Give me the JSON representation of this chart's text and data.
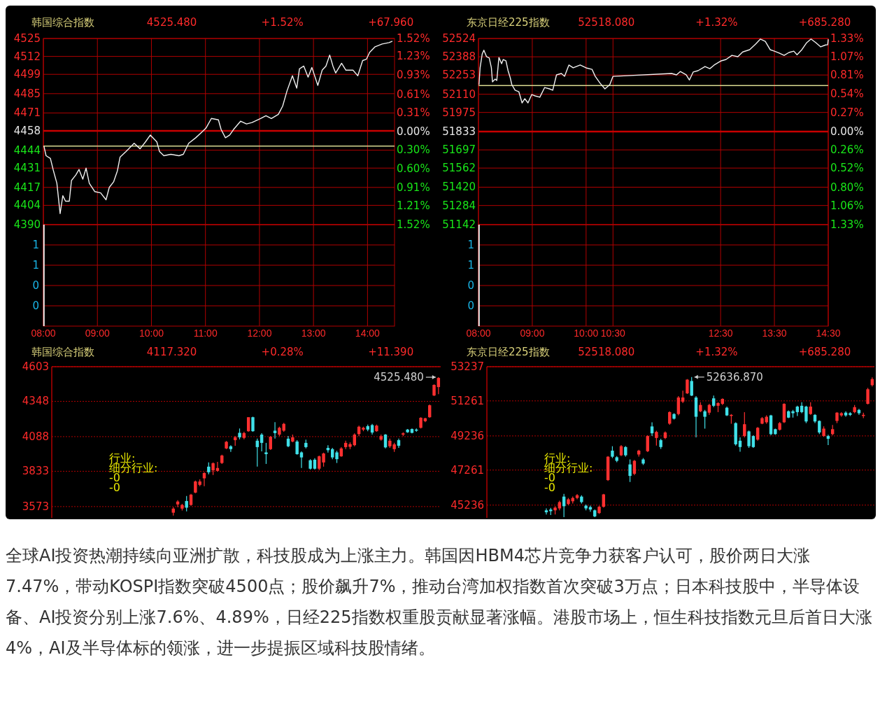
{
  "chart_data": [
    {
      "type": "line",
      "title": "韩国综合指数",
      "annotations": [
        "4525.480",
        "+1.52%",
        "+67.960"
      ],
      "x": [
        8.01,
        8.05,
        8.13,
        8.18,
        8.25,
        8.31,
        8.36,
        8.41,
        8.48,
        8.52,
        8.6,
        8.66,
        8.73,
        8.79,
        8.85,
        8.95,
        9.06,
        9.16,
        9.22,
        9.3,
        9.37,
        9.42,
        9.53,
        9.68,
        9.79,
        9.89,
        9.98,
        10.1,
        10.15,
        10.23,
        10.36,
        10.51,
        10.59,
        10.69,
        10.82,
        10.93,
        11.01,
        11.11,
        11.24,
        11.29,
        11.37,
        11.45,
        11.52,
        11.65,
        11.76,
        11.86,
        12.02,
        12.12,
        12.22,
        12.35,
        12.43,
        12.51,
        12.61,
        12.69,
        12.74,
        12.82,
        12.9,
        12.97,
        13.08,
        13.16,
        13.23,
        13.3,
        13.36,
        13.41,
        13.52,
        13.6,
        13.73,
        13.82,
        13.91,
        13.98,
        14.04,
        14.14,
        14.27,
        14.4,
        14.46
      ],
      "series": [
        {
          "color": "#f0f0f0",
          "values": [
            4447,
            4440,
            4438,
            4430,
            4420,
            4398,
            4411,
            4407,
            4407,
            4422,
            4426,
            4430,
            4423,
            4431,
            4420,
            4414,
            4413,
            4408,
            4417,
            4421,
            4429,
            4439,
            4443,
            4449,
            4445,
            4450,
            4455,
            4450,
            4443,
            4440,
            4441,
            4440,
            4441,
            4449,
            4453,
            4457,
            4460,
            4467,
            4466,
            4459,
            4453,
            4455,
            4459,
            4465,
            4463,
            4464,
            4467,
            4469,
            4467,
            4470,
            4476,
            4487,
            4498,
            4489,
            4503,
            4505,
            4497,
            4504,
            4491,
            4502,
            4505,
            4513,
            4505,
            4500,
            4507,
            4502,
            4502,
            4498,
            4509,
            4510,
            4515,
            4519,
            4521,
            4522,
            4523
          ]
        }
      ],
      "xlim": [
        8,
        14.5
      ],
      "xticks": [
        {
          "value": 8,
          "label": null
        },
        {
          "value": 9,
          "label": null
        },
        {
          "value": 10,
          "label": null
        },
        {
          "value": 11,
          "label": null
        },
        {
          "value": 12,
          "label": null
        },
        {
          "value": 13,
          "label": null
        },
        {
          "value": 14,
          "label": null
        }
      ],
      "ylim": [
        4390,
        4525
      ],
      "yticks": [
        4525,
        4512,
        4499,
        4485,
        4471,
        4458,
        4444,
        4431,
        4417,
        4404,
        4390
      ],
      "y2lim": [
        -1.52,
        1.52
      ],
      "y2ticks": [
        {
          "value": 1.52,
          "label": "1.52%"
        },
        {
          "value": 1.23,
          "label": "1.23%"
        },
        {
          "value": 0.93,
          "label": "0.93%"
        },
        {
          "value": 0.61,
          "label": "0.61%"
        },
        {
          "value": 0.31,
          "label": "0.31%"
        },
        {
          "value": 0,
          "label": "0.00%"
        },
        {
          "value": -0.3,
          "label": "0.30%"
        },
        {
          "value": -0.6,
          "label": "0.60%"
        },
        {
          "value": -0.91,
          "label": "0.91%"
        },
        {
          "value": -1.21,
          "label": "1.21%"
        },
        {
          "value": -1.52,
          "label": "1.52%"
        }
      ],
      "ref_lines": [
        {
          "axis": "y",
          "value": 4458,
          "color": "#c80000"
        },
        {
          "axis": "y",
          "value": 4447,
          "color": "#d8d890"
        }
      ],
      "grid": true,
      "tick_labels": "y"
    },
    {
      "type": "bar",
      "x": [
        8.01
      ],
      "values": [
        1.25
      ],
      "color": "#f0f0f0",
      "xlim": [
        8,
        14.5
      ],
      "xticks": [
        {
          "value": 8,
          "label": "08:00"
        },
        {
          "value": 9,
          "label": "09:00"
        },
        {
          "value": 10,
          "label": "10:00"
        },
        {
          "value": 11,
          "label": "11:00"
        },
        {
          "value": 12,
          "label": "12:00"
        },
        {
          "value": 13,
          "label": "13:00"
        },
        {
          "value": 14,
          "label": "14:00"
        }
      ],
      "ylim": [
        0,
        1.25
      ],
      "yticks": [
        {
          "value": 1,
          "label": "1"
        },
        {
          "value": 0.75,
          "label": "1"
        },
        {
          "value": 0.5,
          "label": "0"
        },
        {
          "value": 0.25,
          "label": "0"
        }
      ],
      "grid": true
    },
    {
      "type": "line",
      "title": "东京日经225指数",
      "annotations": [
        "52518.080",
        "+1.32%",
        "+685.280"
      ],
      "x": [
        8.01,
        8.03,
        8.07,
        8.1,
        8.15,
        8.2,
        8.24,
        8.26,
        8.31,
        8.34,
        8.38,
        8.43,
        8.46,
        8.51,
        8.55,
        8.59,
        8.62,
        8.68,
        8.75,
        8.81,
        8.86,
        8.92,
        8.99,
        9.05,
        9.14,
        9.23,
        9.32,
        9.38,
        9.45,
        9.54,
        9.6,
        9.68,
        9.76,
        9.89,
        10,
        10.11,
        10.17,
        10.26,
        10.35,
        10.44,
        10.5,
        11.59,
        11.68,
        11.75,
        11.86,
        11.92,
        11.99,
        12.08,
        12.21,
        12.3,
        12.38,
        12.51,
        12.6,
        12.71,
        12.82,
        12.91,
        13.04,
        13.15,
        13.24,
        13.33,
        13.42,
        13.5,
        13.59,
        13.68,
        13.77,
        13.86,
        13.92,
        14.01,
        14.1,
        14.18,
        14.27,
        14.36,
        14.45,
        14.49,
        14.5
      ],
      "series": [
        {
          "color": "#f0f0f0",
          "values": [
            52181,
            52306,
            52410,
            52437,
            52389,
            52379,
            52306,
            52202,
            52223,
            52212,
            52383,
            52337,
            52368,
            52358,
            52285,
            52233,
            52181,
            52140,
            52129,
            52046,
            52077,
            52046,
            52108,
            52098,
            52088,
            52160,
            52150,
            52140,
            52254,
            52264,
            52243,
            52327,
            52306,
            52327,
            52306,
            52295,
            52243,
            52192,
            52150,
            52181,
            52243,
            52264,
            52254,
            52279,
            52254,
            52216,
            52275,
            52285,
            52316,
            52300,
            52327,
            52358,
            52368,
            52399,
            52389,
            52424,
            52441,
            52482,
            52520,
            52503,
            52441,
            52430,
            52416,
            52399,
            52420,
            52430,
            52403,
            52441,
            52493,
            52520,
            52493,
            52462,
            52476,
            52478,
            52518
          ]
        }
      ],
      "xlim": [
        8,
        14.5
      ],
      "xticks": [
        {
          "value": 8,
          "label": null
        },
        {
          "value": 9,
          "label": null
        },
        {
          "value": 10,
          "label": null
        },
        {
          "value": 10.5,
          "label": null
        },
        {
          "value": 12.5,
          "label": null
        },
        {
          "value": 13.5,
          "label": null
        },
        {
          "value": 14.5,
          "label": null
        }
      ],
      "ylim": [
        51142,
        52524
      ],
      "yticks": [
        52524,
        52388,
        52253,
        52110,
        51975,
        51833,
        51697,
        51562,
        51420,
        51284,
        51142
      ],
      "y2lim": [
        -1.33,
        1.33
      ],
      "y2ticks": [
        {
          "value": 1.33,
          "label": "1.33%"
        },
        {
          "value": 1.07,
          "label": "1.07%"
        },
        {
          "value": 0.81,
          "label": "0.81%"
        },
        {
          "value": 0.54,
          "label": "0.54%"
        },
        {
          "value": 0.27,
          "label": "0.27%"
        },
        {
          "value": 0,
          "label": "0.00%"
        },
        {
          "value": -0.26,
          "label": "0.26%"
        },
        {
          "value": -0.52,
          "label": "0.52%"
        },
        {
          "value": -0.8,
          "label": "0.80%"
        },
        {
          "value": -1.06,
          "label": "1.06%"
        },
        {
          "value": -1.33,
          "label": "1.33%"
        }
      ],
      "ref_lines": [
        {
          "axis": "y",
          "value": 51833,
          "color": "#c80000"
        },
        {
          "axis": "y",
          "value": 52175,
          "color": "#d8d890"
        }
      ],
      "grid": true,
      "tick_labels": "y"
    },
    {
      "type": "bar",
      "x": [
        8.01
      ],
      "values": [
        1.25
      ],
      "color": "#f0f0f0",
      "xlim": [
        8,
        14.5
      ],
      "xticks": [
        {
          "value": 8,
          "label": "08:00"
        },
        {
          "value": 9,
          "label": "09:00"
        },
        {
          "value": 10,
          "label": "10:00"
        },
        {
          "value": 10.5,
          "label": "10:30"
        },
        {
          "value": 12.5,
          "label": "12:30"
        },
        {
          "value": 13.5,
          "label": "13:30"
        },
        {
          "value": 14.5,
          "label": "14:30"
        }
      ],
      "ylim": [
        0,
        1.25
      ],
      "yticks": [
        {
          "value": 1,
          "label": "1"
        },
        {
          "value": 0.75,
          "label": "1"
        },
        {
          "value": 0.5,
          "label": "0"
        },
        {
          "value": 0.25,
          "label": "0"
        }
      ],
      "grid": true
    },
    {
      "type": "candlestick",
      "title": "韩国综合指数",
      "annotations": [
        "4117.320",
        "+0.28%",
        "+11.390",
        "4525.480",
        "行业:",
        "细分行业:",
        "-0",
        "-0"
      ],
      "categories": [
        null,
        null,
        null,
        null,
        null,
        null,
        null,
        null,
        null,
        null,
        null,
        null,
        null,
        null,
        null,
        null,
        null,
        null,
        null,
        null,
        null,
        null,
        null,
        null,
        null,
        null,
        null,
        null,
        null,
        null,
        null,
        null,
        null,
        null,
        null,
        null,
        null,
        null,
        null,
        null,
        null,
        null,
        null,
        null,
        null,
        null,
        null,
        null,
        null,
        null,
        null,
        null,
        null,
        null,
        null,
        null,
        null,
        null,
        null,
        null,
        null,
        null,
        null,
        null,
        null,
        null,
        null,
        null,
        null,
        null,
        null,
        null,
        null,
        null,
        null,
        null,
        null,
        null,
        null,
        null,
        null,
        null,
        null,
        null,
        null,
        null,
        null,
        null
      ],
      "ohlc": [
        null,
        null,
        null,
        null,
        null,
        null,
        null,
        null,
        null,
        null,
        null,
        null,
        null,
        null,
        null,
        null,
        null,
        null,
        null,
        null,
        null,
        null,
        null,
        null,
        null,
        null,
        null,
        [
          3528,
          3569,
          3507,
          3558
        ],
        [
          3589,
          3620,
          3569,
          3610
        ],
        [
          3558,
          3593,
          3544,
          3585
        ],
        [
          3614,
          3651,
          3538,
          3565
        ],
        [
          3585,
          3667,
          3579,
          3661
        ],
        [
          3676,
          3764,
          3672,
          3758
        ],
        [
          3733,
          3774,
          3723,
          3758
        ],
        [
          3781,
          3826,
          3723,
          3820
        ],
        [
          3867,
          3898,
          3811,
          3826
        ],
        [
          3840,
          3898,
          3805,
          3892
        ],
        [
          3836,
          3902,
          3830,
          3857
        ],
        [
          3894,
          3955,
          3887,
          3949
        ],
        [
          4001,
          4056,
          3996,
          4050
        ],
        [
          4017,
          4025,
          3976,
          3996
        ],
        [
          4062,
          4093,
          4021,
          4083
        ],
        [
          4116,
          4148,
          4068,
          4083
        ],
        [
          4079,
          4124,
          4068,
          4114
        ],
        [
          4128,
          4231,
          4124,
          4231
        ],
        [
          4231,
          4235,
          4124,
          4128
        ],
        [
          4058,
          4073,
          3867,
          4011
        ],
        [
          4103,
          4114,
          3980,
          4042
        ],
        [
          3972,
          4042,
          3887,
          3959
        ],
        [
          3996,
          4093,
          3990,
          4087
        ],
        [
          4132,
          4194,
          4073,
          4114
        ],
        [
          4103,
          4161,
          4091,
          4153
        ],
        [
          4132,
          4190,
          4124,
          4182
        ],
        [
          4073,
          4093,
          4011,
          4017
        ],
        [
          4052,
          4103,
          4046,
          4083
        ],
        [
          4052,
          4062,
          3955,
          3959
        ],
        [
          3972,
          3980,
          3857,
          3935
        ],
        [
          4042,
          4066,
          4001,
          4011
        ],
        [
          3914,
          3922,
          3846,
          3852
        ],
        [
          3918,
          3929,
          3846,
          3852
        ],
        [
          3852,
          3949,
          3840,
          3943
        ],
        [
          3898,
          3970,
          3867,
          3964
        ],
        [
          4005,
          4025,
          3970,
          3988
        ],
        [
          3996,
          4005,
          3922,
          3935
        ],
        [
          3972,
          3984,
          3894,
          3922
        ],
        [
          3943,
          4011,
          3939,
          4001
        ],
        [
          4011,
          4058,
          3996,
          4042
        ],
        [
          4013,
          4046,
          3996,
          4033
        ],
        [
          4025,
          4112,
          4017,
          4103
        ],
        [
          4107,
          4169,
          4091,
          4161
        ],
        [
          4140,
          4161,
          4128,
          4153
        ],
        [
          4165,
          4177,
          4128,
          4140
        ],
        [
          4173,
          4182,
          4103,
          4118
        ],
        [
          4128,
          4177,
          4124,
          4169
        ],
        [
          4066,
          4103,
          4058,
          4091
        ],
        [
          4103,
          4107,
          4001,
          4009
        ],
        [
          4017,
          4073,
          4005,
          4058
        ],
        [
          3996,
          4042,
          3976,
          4031
        ],
        [
          4062,
          4073,
          4005,
          4021
        ],
        [
          4103,
          4120,
          4091,
          4112
        ],
        [
          4140,
          4144,
          4116,
          4120
        ],
        [
          4144,
          4148,
          4112,
          4116
        ],
        [
          4140,
          4148,
          4124,
          4132
        ],
        [
          4153,
          4231,
          4148,
          4227
        ],
        [
          4202,
          4227,
          4194,
          4223
        ],
        [
          4231,
          4325,
          4227,
          4319
        ],
        [
          4391,
          4473,
          4387,
          4469
        ],
        [
          4453,
          4525.48,
          4401,
          4520
        ]
      ],
      "colors": [
        null,
        null,
        null,
        null,
        null,
        null,
        null,
        null,
        null,
        null,
        null,
        null,
        null,
        null,
        null,
        null,
        null,
        null,
        null,
        null,
        null,
        null,
        null,
        null,
        null,
        null,
        null,
        "#ff3030",
        "#ff3030",
        "#ff3030",
        "#40e0e8",
        "#ff3030",
        "#ff3030",
        "#ff3030",
        "#ff3030",
        "#40e0e8",
        "#ff3030",
        "#ff3030",
        "#ff3030",
        "#ff3030",
        "#40e0e8",
        "#ff3030",
        "#40e0e8",
        "#ff3030",
        "#ff3030",
        "#40e0e8",
        "#40e0e8",
        "#40e0e8",
        "#40e0e8",
        "#ff3030",
        "#40e0e8",
        "#ff3030",
        "#ff3030",
        "#40e0e8",
        "#ff3030",
        "#40e0e8",
        "#40e0e8",
        "#40e0e8",
        "#40e0e8",
        "#40e0e8",
        "#ff3030",
        "#ff3030",
        "#40e0e8",
        "#40e0e8",
        "#40e0e8",
        "#ff3030",
        "#ff3030",
        "#ff3030",
        "#ff3030",
        "#ff3030",
        "#ff3030",
        "#40e0e8",
        "#40e0e8",
        "#ff3030",
        "#ff3030",
        "#40e0e8",
        "#ff3030",
        "#ff3030",
        "#40e0e8",
        "#ff3030",
        "#40e0e8",
        "#40e0e8",
        "#40e0e8",
        "#ff3030",
        "#ff3030",
        "#ff3030",
        "#ff3030",
        "#ff3030"
      ],
      "ylim": [
        3490,
        4603
      ],
      "yticks": [
        4603,
        4348,
        4088,
        3833,
        3573
      ],
      "grid": "y",
      "tick_labels": "y"
    },
    {
      "type": "candlestick",
      "title": "东京日经225指数",
      "annotations": [
        "52518.080",
        "+1.32%",
        "+685.280",
        "52636.870",
        "行业:",
        "细分行业:",
        "-0",
        "-0"
      ],
      "categories": [
        null,
        null,
        null,
        null,
        null,
        null,
        null,
        null,
        null,
        null,
        null,
        null,
        null,
        null,
        null,
        null,
        null,
        null,
        null,
        null,
        null,
        null,
        null,
        null,
        null,
        null,
        null,
        null,
        null,
        null,
        null,
        null,
        null,
        null,
        null,
        null,
        null,
        null,
        null,
        null,
        null,
        null,
        null,
        null,
        null,
        null,
        null,
        null,
        null,
        null,
        null,
        null,
        null,
        null,
        null,
        null,
        null,
        null,
        null,
        null,
        null,
        null,
        null,
        null,
        null,
        null,
        null,
        null,
        null,
        null,
        null,
        null,
        null,
        null,
        null,
        null,
        null,
        null,
        null,
        null,
        null,
        null,
        null,
        null,
        null,
        null,
        null,
        null
      ],
      "ohlc": [
        null,
        null,
        null,
        null,
        null,
        null,
        null,
        null,
        null,
        null,
        null,
        null,
        null,
        [
          44934,
          45045,
          44695,
          44822
        ],
        [
          44981,
          45076,
          44663,
          44886
        ],
        [
          44934,
          45172,
          44695,
          45092
        ],
        [
          45045,
          45490,
          44934,
          45411
        ],
        [
          45729,
          45888,
          44540,
          45172
        ],
        [
          45299,
          45649,
          45236,
          45570
        ],
        [
          45458,
          45729,
          45331,
          45649
        ],
        [
          45649,
          45872,
          45570,
          45808
        ],
        [
          45729,
          45808,
          45331,
          45411
        ],
        [
          45204,
          45268,
          44934,
          45045
        ],
        [
          45124,
          45204,
          44854,
          44981
        ],
        [
          44934,
          44981,
          44540,
          44584
        ],
        [
          44775,
          45204,
          44727,
          45140
        ],
        [
          45140,
          45888,
          45092,
          45856
        ],
        [
          46683,
          48067,
          46635,
          48035
        ],
        [
          48385,
          48641,
          47956,
          48035
        ],
        [
          48003,
          48067,
          47717,
          47796
        ],
        [
          48115,
          48704,
          48067,
          48641
        ],
        [
          48593,
          48641,
          48035,
          48115
        ],
        [
          47590,
          47876,
          46572,
          46922
        ],
        [
          47049,
          47844,
          46969,
          47796
        ],
        [
          48163,
          48433,
          48035,
          48385
        ],
        [
          47876,
          47956,
          47558,
          47637
        ],
        [
          48353,
          49276,
          48306,
          49228
        ],
        [
          49785,
          50024,
          49228,
          49387
        ],
        [
          49117,
          49531,
          48672,
          49467
        ],
        [
          48990,
          49070,
          48481,
          48593
        ],
        [
          49117,
          49499,
          49054,
          49435
        ],
        [
          49944,
          50660,
          49881,
          50612
        ],
        [
          50501,
          50548,
          50183,
          50231
        ],
        [
          50501,
          51535,
          50421,
          51455
        ],
        [
          51217,
          51853,
          51137,
          51455
        ],
        [
          51694,
          52521,
          51662,
          52489
        ],
        [
          52410,
          52636.87,
          51535,
          51567
        ],
        [
          51455,
          51535,
          49149,
          50342
        ],
        [
          50660,
          51185,
          50612,
          51026
        ],
        [
          50660,
          50740,
          49658,
          50342
        ],
        [
          50580,
          51089,
          50453,
          51026
        ],
        [
          51408,
          51567,
          50898,
          50978
        ],
        [
          50978,
          51185,
          50612,
          51137
        ],
        [
          51089,
          51408,
          51026,
          51376
        ],
        [
          50867,
          50930,
          50389,
          50421
        ],
        [
          50389,
          50501,
          49944,
          50453
        ],
        [
          49976,
          50024,
          48672,
          48751
        ],
        [
          48958,
          49149,
          48322,
          48593
        ],
        [
          49228,
          50612,
          49149,
          49912
        ],
        [
          49499,
          49547,
          48546,
          48641
        ],
        [
          49228,
          49276,
          48546,
          48593
        ],
        [
          49022,
          49753,
          48958,
          49706
        ],
        [
          49944,
          50326,
          49912,
          50262
        ],
        [
          50024,
          50421,
          49944,
          50342
        ],
        [
          50421,
          50453,
          49276,
          49340
        ],
        [
          49626,
          49658,
          49308,
          49340
        ],
        [
          49594,
          50040,
          49547,
          49976
        ],
        [
          50024,
          51121,
          49976,
          51089
        ],
        [
          50660,
          50708,
          50262,
          50294
        ],
        [
          50660,
          50740,
          50294,
          50548
        ],
        [
          50930,
          50978,
          50389,
          50612
        ],
        [
          50978,
          51185,
          50548,
          50612
        ],
        [
          50930,
          50978,
          49976,
          50071
        ],
        [
          50501,
          51185,
          50453,
          50930
        ],
        [
          50453,
          50501,
          49976,
          50071
        ],
        [
          50103,
          50135,
          49340,
          49435
        ],
        [
          49228,
          49785,
          49180,
          49658
        ],
        [
          49228,
          49308,
          48704,
          49070
        ],
        [
          49340,
          49865,
          49276,
          49626
        ],
        [
          50103,
          50612,
          49976,
          50580
        ],
        [
          50421,
          50612,
          50342,
          50548
        ],
        [
          50580,
          50660,
          50342,
          50421
        ],
        [
          50548,
          50612,
          50389,
          50453
        ],
        [
          50612,
          51026,
          50548,
          50898
        ],
        [
          50740,
          50803,
          50453,
          50548
        ],
        [
          50389,
          50580,
          50262,
          50453
        ],
        [
          51089,
          52012,
          51058,
          51933
        ],
        [
          52171,
          52617,
          52092,
          52521
        ]
      ],
      "colors": [
        null,
        null,
        null,
        null,
        null,
        null,
        null,
        null,
        null,
        null,
        null,
        null,
        null,
        "#40e0e8",
        "#40e0e8",
        "#ff3030",
        "#ff3030",
        "#40e0e8",
        "#ff3030",
        "#ff3030",
        "#ff3030",
        "#40e0e8",
        "#40e0e8",
        "#40e0e8",
        "#40e0e8",
        "#ff3030",
        "#ff3030",
        "#ff3030",
        "#40e0e8",
        "#40e0e8",
        "#ff3030",
        "#40e0e8",
        "#40e0e8",
        "#ff3030",
        "#ff3030",
        "#40e0e8",
        "#ff3030",
        "#40e0e8",
        "#ff3030",
        "#40e0e8",
        "#ff3030",
        "#ff3030",
        "#40e0e8",
        "#ff3030",
        "#ff3030",
        "#ff3030",
        "#40e0e8",
        "#40e0e8",
        "#ff3030",
        "#40e0e8",
        "#ff3030",
        "#40e0e8",
        "#ff3030",
        "#ff3030",
        "#40e0e8",
        "#ff3030",
        "#40e0e8",
        "#40e0e8",
        "#ff3030",
        "#40e0e8",
        "#40e0e8",
        "#ff3030",
        "#ff3030",
        "#ff3030",
        "#40e0e8",
        "#40e0e8",
        "#ff3030",
        "#ff3030",
        "#40e0e8",
        "#40e0e8",
        "#40e0e8",
        "#40e0e8",
        "#40e0e8",
        "#ff3030",
        "#40e0e8",
        "#40e0e8",
        "#ff3030",
        "#40e0e8",
        "#ff3030",
        "#ff3030",
        "#ff3030",
        "#40e0e8",
        "#40e0e8",
        "#ff3030",
        "#40e0e8",
        "#ff3030",
        "#ff3030",
        "#ff3030"
      ],
      "ylim": [
        44500,
        53237
      ],
      "yticks": [
        53237,
        51261,
        49236,
        47261,
        45236
      ],
      "grid": "y",
      "tick_labels": "y"
    },
    {
      "type": "other",
      "annotations": [
        "全球AI投资热潮持续向亚洲扩散，科技股成为上涨主力。韩国因HBM4芯片竞争力获客户认可，股价两日大涨7.47%，带动KOSPI指数突破4500点；股价飙升7%，推动台湾加权指数首次突破3万点；日本科技股中，半导体设备、AI投资分别上涨7.6%、4.89%，日经225指数权重股贡献显著涨幅。港股市场上，恒生科技指数元旦后首日大涨4%，AI及半导体标的领涨，进一步提振区域科技股情绪。"
      ]
    }
  ]
}
